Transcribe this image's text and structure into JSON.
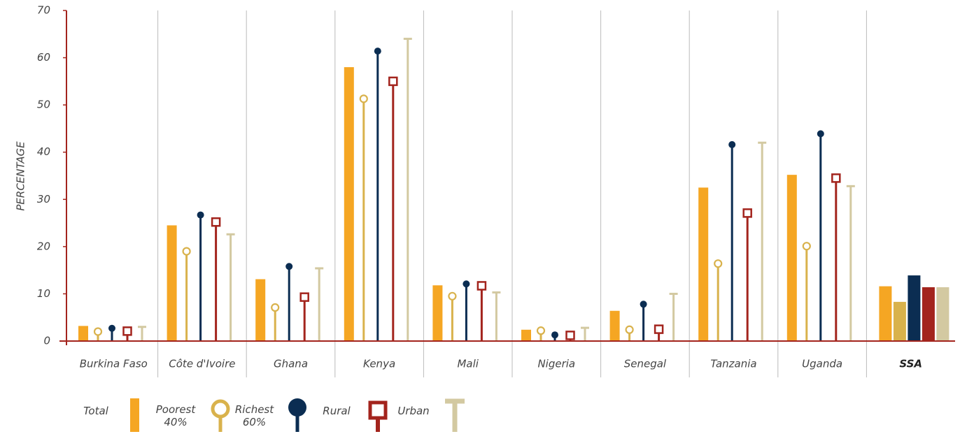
{
  "chart_data": {
    "type": "lollipop",
    "y_label": "PERCENTAGE",
    "categories": [
      "Burkina Faso",
      "Côte d'Ivoire",
      "Ghana",
      "Kenya",
      "Mali",
      "Nigeria",
      "Senegal",
      "Tanzania",
      "Uganda",
      "SSA"
    ],
    "series": [
      {
        "name": "Total",
        "color": "#f5a623",
        "values": [
          3.2,
          24.5,
          13.1,
          58,
          11.8,
          2.4,
          6.4,
          32.5,
          35.2,
          11.6
        ]
      },
      {
        "name": "Poorest 40%",
        "color": "#d9b24c",
        "values": [
          2.0,
          19,
          7.1,
          51.3,
          9.5,
          2.2,
          2.4,
          16.4,
          20.1,
          8.3
        ]
      },
      {
        "name": "Richest 60%",
        "color": "#0b2d52",
        "values": [
          2.7,
          26.7,
          15.8,
          61.4,
          12.1,
          1.3,
          7.8,
          41.6,
          43.9,
          13.9
        ]
      },
      {
        "name": "Rural",
        "color": "#a3241d",
        "values": [
          2.1,
          25.2,
          9.3,
          55,
          11.7,
          1.2,
          2.5,
          27.1,
          34.5,
          11.4
        ]
      },
      {
        "name": "Urban",
        "color": "#d3c9a1",
        "values": [
          3.0,
          22.6,
          15.4,
          64,
          10.3,
          2.8,
          10,
          42,
          32.8,
          11.4
        ]
      }
    ],
    "ylim": [
      0,
      70
    ],
    "yticks": [
      0,
      10,
      20,
      30,
      40,
      50,
      60,
      70
    ]
  }
}
